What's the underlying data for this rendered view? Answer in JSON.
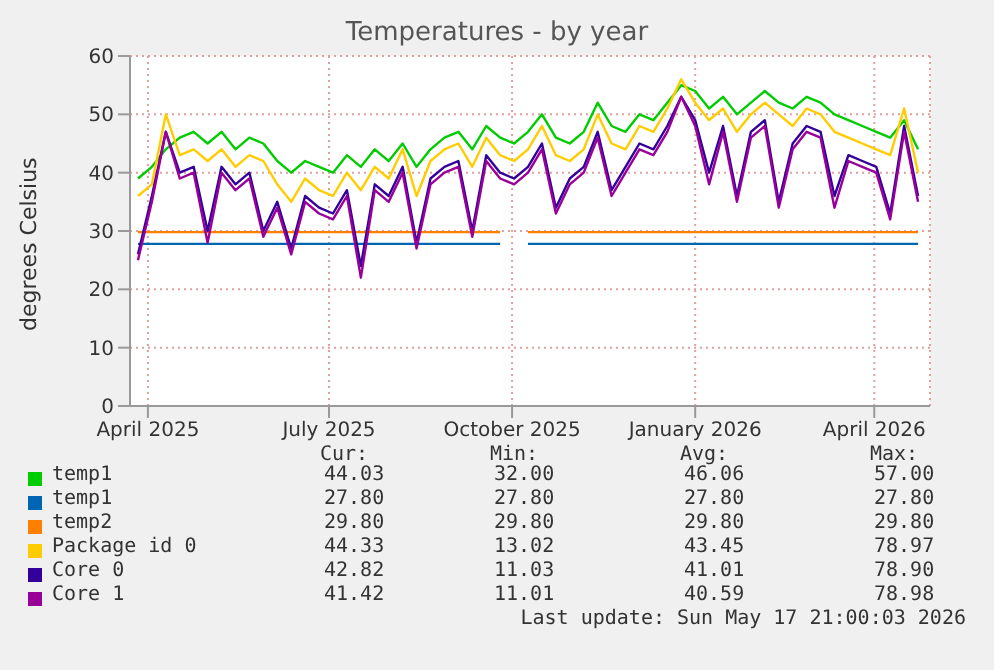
{
  "chart_data": {
    "type": "line",
    "title": "Temperatures - by year",
    "ylabel": "degrees Celsius",
    "x": [
      "2025-03-27",
      "2025-04-03",
      "2025-04-10",
      "2025-04-17",
      "2025-04-24",
      "2025-05-01",
      "2025-05-08",
      "2025-05-15",
      "2025-05-22",
      "2025-05-29",
      "2025-06-05",
      "2025-06-12",
      "2025-06-19",
      "2025-06-26",
      "2025-07-03",
      "2025-07-10",
      "2025-07-17",
      "2025-07-24",
      "2025-07-31",
      "2025-08-07",
      "2025-08-14",
      "2025-08-21",
      "2025-08-28",
      "2025-09-04",
      "2025-09-11",
      "2025-09-18",
      "2025-09-25",
      "2025-10-02",
      "2025-10-09",
      "2025-10-16",
      "2025-10-23",
      "2025-10-30",
      "2025-11-06",
      "2025-11-13",
      "2025-11-20",
      "2025-11-27",
      "2025-12-04",
      "2025-12-11",
      "2025-12-18",
      "2025-12-25",
      "2026-01-01",
      "2026-01-08",
      "2026-01-15",
      "2026-01-22",
      "2026-01-29",
      "2026-02-05",
      "2026-02-12",
      "2026-02-19",
      "2026-02-26",
      "2026-03-05",
      "2026-03-12",
      "2026-03-19",
      "2026-03-26",
      "2026-04-02",
      "2026-04-09",
      "2026-04-16",
      "2026-04-23"
    ],
    "xlim": [
      "2025-03-23",
      "2026-04-29"
    ],
    "xticks": [
      {
        "value": "2025-04-01",
        "label": "April 2025"
      },
      {
        "value": "2025-07-01",
        "label": "July 2025"
      },
      {
        "value": "2025-10-01",
        "label": "October 2025"
      },
      {
        "value": "2026-01-01",
        "label": "January 2026"
      },
      {
        "value": "2026-04-01",
        "label": "April 2026"
      }
    ],
    "ylim": [
      0,
      60
    ],
    "yticks": [
      0,
      10,
      20,
      30,
      40,
      50,
      60
    ],
    "grid": true,
    "legend": "bottom",
    "marker": "none",
    "line_style": "solid",
    "series": [
      {
        "name": "temp1",
        "color": "#00cc00",
        "values": [
          39,
          41,
          44,
          46,
          47,
          45,
          47,
          44,
          46,
          45,
          42,
          40,
          42,
          41,
          40,
          43,
          41,
          44,
          42,
          45,
          41,
          44,
          46,
          47,
          44,
          48,
          46,
          45,
          47,
          50,
          46,
          45,
          47,
          52,
          48,
          47,
          50,
          49,
          52,
          55,
          54,
          51,
          53,
          50,
          52,
          54,
          52,
          51,
          53,
          52,
          50,
          49,
          48,
          47,
          46,
          49,
          44
        ]
      },
      {
        "name": "temp1",
        "color": "#0066b3",
        "values": [
          27.8,
          27.8,
          27.8,
          27.8,
          27.8,
          27.8,
          27.8,
          27.8,
          27.8,
          27.8,
          27.8,
          27.8,
          27.8,
          27.8,
          27.8,
          27.8,
          27.8,
          27.8,
          27.8,
          27.8,
          27.8,
          27.8,
          27.8,
          27.8,
          27.8,
          27.8,
          27.8,
          null,
          27.8,
          27.8,
          27.8,
          27.8,
          27.8,
          27.8,
          27.8,
          27.8,
          27.8,
          27.8,
          27.8,
          27.8,
          27.8,
          27.8,
          27.8,
          27.8,
          27.8,
          27.8,
          27.8,
          27.8,
          27.8,
          27.8,
          27.8,
          27.8,
          27.8,
          27.8,
          27.8,
          27.8,
          27.8
        ]
      },
      {
        "name": "temp2",
        "color": "#ff8000",
        "values": [
          29.8,
          29.8,
          29.8,
          29.8,
          29.8,
          29.8,
          29.8,
          29.8,
          29.8,
          29.8,
          29.8,
          29.8,
          29.8,
          29.8,
          29.8,
          29.8,
          29.8,
          29.8,
          29.8,
          29.8,
          29.8,
          29.8,
          29.8,
          29.8,
          29.8,
          29.8,
          29.8,
          null,
          29.8,
          29.8,
          29.8,
          29.8,
          29.8,
          29.8,
          29.8,
          29.8,
          29.8,
          29.8,
          29.8,
          29.8,
          29.8,
          29.8,
          29.8,
          29.8,
          29.8,
          29.8,
          29.8,
          29.8,
          29.8,
          29.8,
          29.8,
          29.8,
          29.8,
          29.8,
          29.8,
          29.8,
          29.8
        ]
      },
      {
        "name": "Package id 0",
        "color": "#ffcc00",
        "values": [
          36,
          38,
          50,
          43,
          44,
          42,
          44,
          41,
          43,
          42,
          38,
          35,
          39,
          37,
          36,
          40,
          37,
          41,
          39,
          44,
          36,
          42,
          44,
          45,
          41,
          46,
          43,
          42,
          44,
          48,
          43,
          42,
          44,
          50,
          45,
          44,
          48,
          47,
          51,
          56,
          52,
          49,
          51,
          47,
          50,
          52,
          50,
          48,
          51,
          50,
          47,
          46,
          45,
          44,
          43,
          51,
          40
        ]
      },
      {
        "name": "Core 0",
        "color": "#330099",
        "values": [
          26,
          36,
          47,
          40,
          41,
          30,
          41,
          38,
          40,
          30,
          35,
          27,
          36,
          34,
          33,
          37,
          24,
          38,
          36,
          41,
          28,
          39,
          41,
          42,
          30,
          43,
          40,
          39,
          41,
          45,
          34,
          39,
          41,
          47,
          37,
          41,
          45,
          44,
          48,
          53,
          49,
          40,
          48,
          36,
          47,
          49,
          35,
          45,
          48,
          47,
          36,
          43,
          42,
          41,
          33,
          48,
          36
        ]
      },
      {
        "name": "Core 1",
        "color": "#990099",
        "values": [
          25,
          35,
          47,
          39,
          40,
          28,
          40,
          37,
          39,
          29,
          34,
          26,
          35,
          33,
          32,
          36,
          22,
          37,
          35,
          40,
          27,
          38,
          40,
          41,
          29,
          42,
          39,
          38,
          40,
          44,
          33,
          38,
          40,
          46,
          36,
          40,
          44,
          43,
          47,
          53,
          48,
          38,
          47,
          35,
          46,
          48,
          34,
          44,
          47,
          46,
          34,
          42,
          41,
          40,
          32,
          47,
          35
        ]
      }
    ],
    "annotations": [
      "Cur:",
      "Min:",
      "Avg:",
      "Max:",
      "44.03",
      "32.00",
      "46.06",
      "57.00",
      "27.80",
      "27.80",
      "27.80",
      "27.80",
      "29.80",
      "29.80",
      "29.80",
      "29.80",
      "44.33",
      "13.02",
      "43.45",
      "78.97",
      "42.82",
      "11.03",
      "41.01",
      "78.90",
      "41.42",
      "11.01",
      "40.59",
      "78.98",
      "Last update: Sun May 17 21:00:03 2026"
    ]
  }
}
